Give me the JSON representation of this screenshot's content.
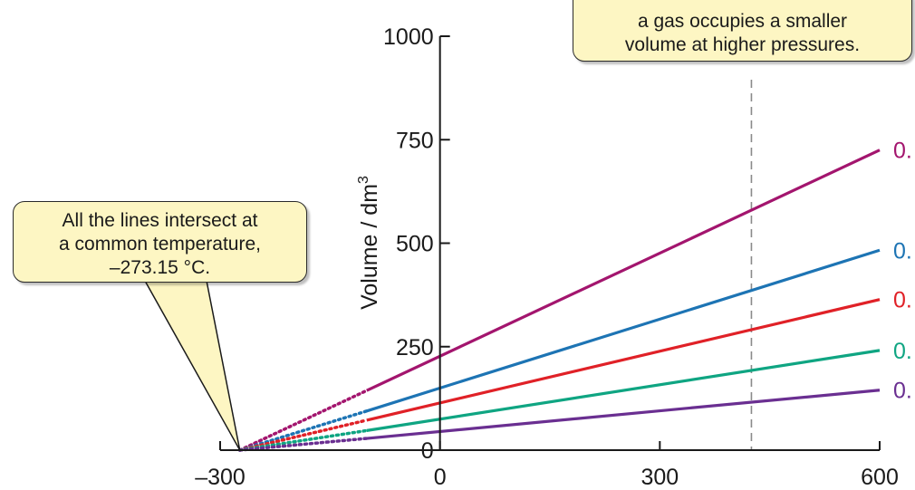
{
  "chart_data": {
    "type": "line",
    "xlabel": "",
    "ylabel": "Volume / dm",
    "ylabel_superscript": "3",
    "xlim": [
      -300,
      600
    ],
    "ylim": [
      0,
      1000
    ],
    "x_ticks": [
      "–300",
      "0",
      "300",
      "600"
    ],
    "y_ticks": [
      "0",
      "250",
      "500",
      "750",
      "1000"
    ],
    "x_tick_values": [
      -300,
      0,
      300,
      600
    ],
    "y_tick_values": [
      0,
      250,
      500,
      750,
      1000
    ],
    "intersection_x": -273.15,
    "extrapolated_from_x": -100,
    "reference_line_x": 425,
    "series": [
      {
        "label": "0.",
        "color": "#a3156e",
        "points": [
          [
            -273.15,
            0
          ],
          [
            0,
            227
          ],
          [
            600,
            725
          ]
        ]
      },
      {
        "label": "0.",
        "color": "#1d74b4",
        "points": [
          [
            -273.15,
            0
          ],
          [
            0,
            150
          ],
          [
            600,
            483
          ]
        ]
      },
      {
        "label": "0.",
        "color": "#e02127",
        "points": [
          [
            -273.15,
            0
          ],
          [
            0,
            114
          ],
          [
            600,
            364
          ]
        ]
      },
      {
        "label": "0.",
        "color": "#0fa582",
        "points": [
          [
            -273.15,
            0
          ],
          [
            0,
            75
          ],
          [
            600,
            241
          ]
        ]
      },
      {
        "label": "0.",
        "color": "#6a2f91",
        "points": [
          [
            -273.15,
            0
          ],
          [
            0,
            45
          ],
          [
            600,
            145
          ]
        ]
      }
    ]
  },
  "callouts": {
    "intersect": {
      "lines": [
        "All the lines intersect at",
        "a common temperature,",
        "–273.15 °C."
      ]
    },
    "pressure": {
      "lines": [
        "a gas occupies a smaller",
        "volume at higher pressures."
      ]
    }
  },
  "colors": {
    "axis": "#1a1a1a",
    "callout_fill": "#fdf6c3",
    "reference_line": "#8a8a8a"
  }
}
